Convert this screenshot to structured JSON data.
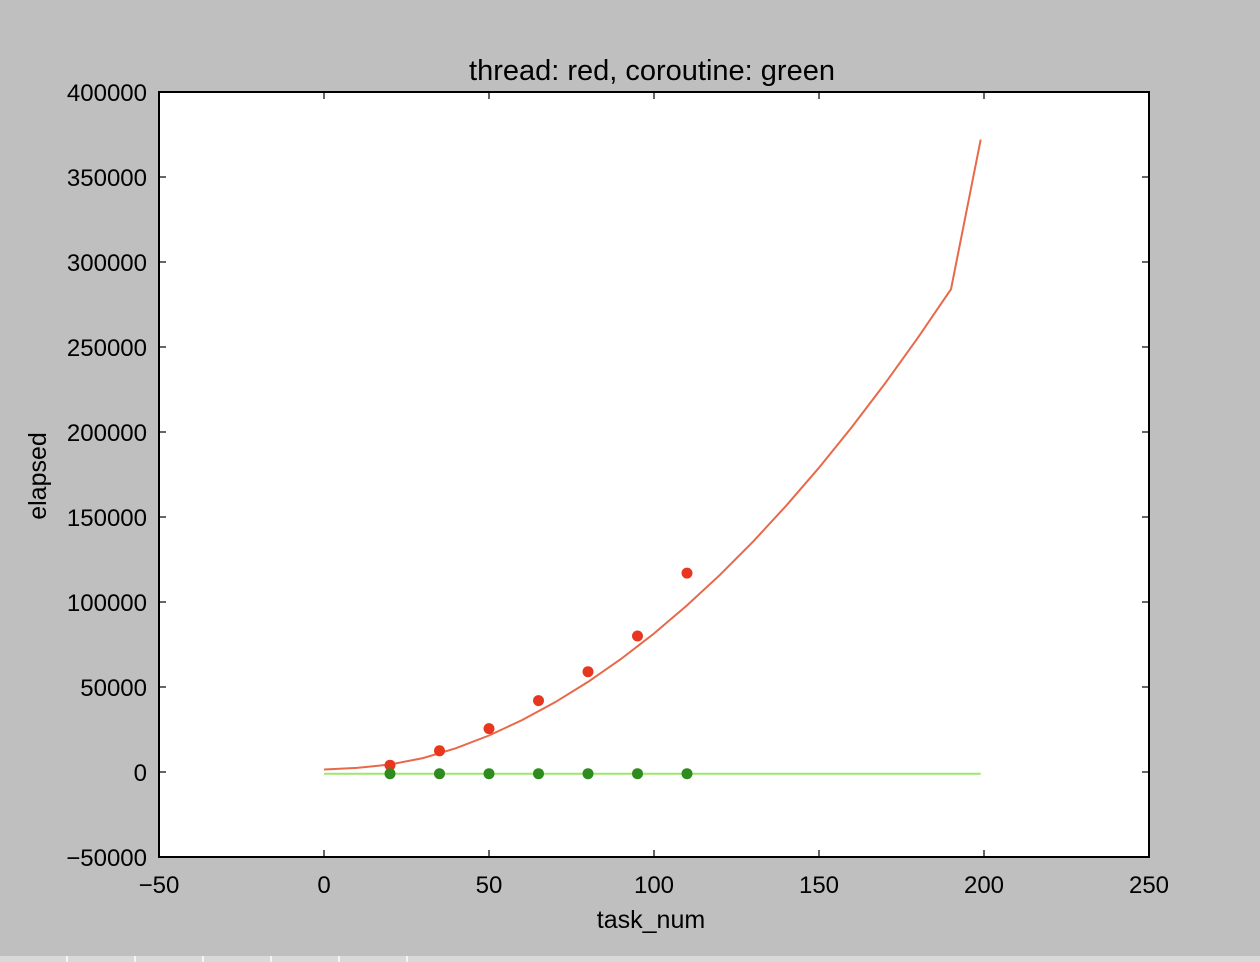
{
  "chart_data": {
    "type": "scatter",
    "title": "thread: red, coroutine: green",
    "xlabel": "task_num",
    "ylabel": "elapsed",
    "xlim": [
      -50,
      250
    ],
    "ylim": [
      -50000,
      400000
    ],
    "xticks": [
      -50,
      0,
      50,
      100,
      150,
      200,
      250
    ],
    "yticks": [
      -50000,
      0,
      50000,
      100000,
      150000,
      200000,
      250000,
      300000,
      350000,
      400000
    ],
    "xtick_labels": [
      "−50",
      "0",
      "50",
      "100",
      "150",
      "200",
      "250"
    ],
    "ytick_labels": [
      "−50000",
      "0",
      "50000",
      "100000",
      "150000",
      "200000",
      "250000",
      "300000",
      "350000",
      "400000"
    ],
    "grid": false,
    "series": [
      {
        "color": "#e8371f",
        "kind": "points",
        "x": [
          20,
          35,
          50,
          65,
          80,
          95,
          110
        ],
        "y": [
          4000,
          12500,
          25500,
          42000,
          59000,
          80000,
          117000
        ]
      },
      {
        "color": "#2e8b1e",
        "kind": "points",
        "x": [
          20,
          35,
          50,
          65,
          80,
          95,
          110
        ],
        "y": [
          -1000,
          -1000,
          -1000,
          -1000,
          -1000,
          -1000,
          -1000
        ]
      },
      {
        "color": "#e8694a",
        "kind": "line",
        "x": [
          0,
          10,
          20,
          30,
          40,
          50,
          60,
          70,
          80,
          90,
          100,
          110,
          120,
          130,
          140,
          150,
          160,
          170,
          180,
          190,
          199
        ],
        "y": [
          1500,
          2400,
          4400,
          8200,
          14000,
          21500,
          30500,
          41000,
          53000,
          66500,
          81500,
          98000,
          116000,
          135500,
          156500,
          179000,
          203000,
          228500,
          255500,
          284000,
          372000
        ]
      },
      {
        "color": "#9be86a",
        "kind": "line",
        "x": [
          0,
          199
        ],
        "y": [
          -1000,
          -1000
        ]
      }
    ]
  }
}
